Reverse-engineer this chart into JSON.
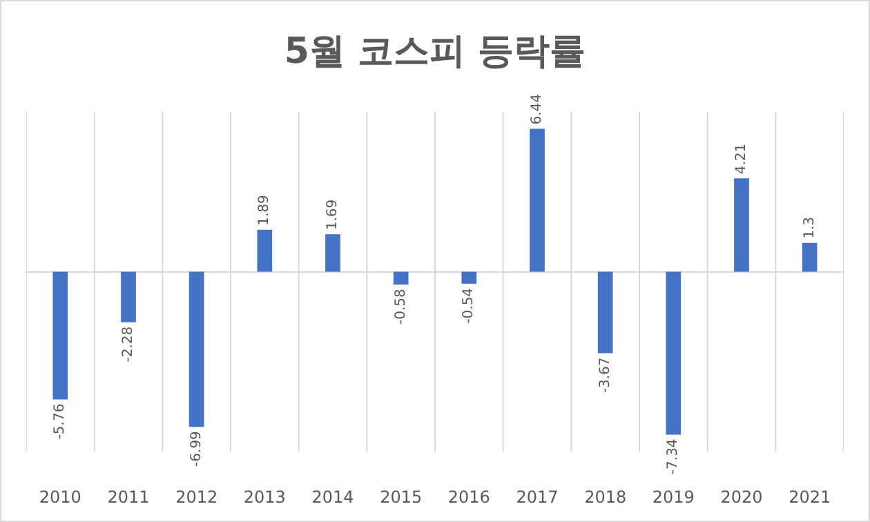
{
  "chart_data": {
    "type": "bar",
    "title": "5월 코스피 등락률",
    "categories": [
      "2010",
      "2011",
      "2012",
      "2013",
      "2014",
      "2015",
      "2016",
      "2017",
      "2018",
      "2019",
      "2020",
      "2021"
    ],
    "values": [
      -5.76,
      -2.28,
      -6.99,
      1.89,
      1.69,
      -0.58,
      -0.54,
      6.44,
      -3.67,
      -7.34,
      4.21,
      1.3
    ],
    "color": "#4472c4",
    "data_labels": true,
    "grid": "x"
  }
}
